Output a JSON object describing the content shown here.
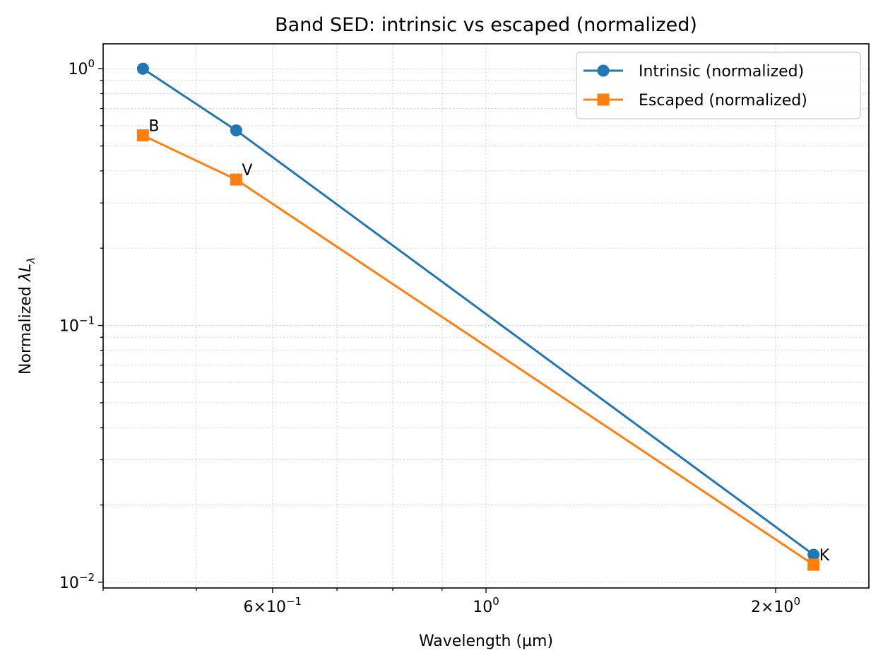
{
  "chart_data": {
    "type": "line",
    "title": "Band SED: intrinsic vs escaped (normalized)",
    "xlabel": "Wavelength (µm)",
    "ylabel_prefix": "Normalized ",
    "ylabel_symbol": "λL",
    "ylabel_subscript": "λ",
    "x_scale": "log",
    "y_scale": "log",
    "xlim": [
      0.4,
      2.5
    ],
    "ylim": [
      0.0095,
      1.25
    ],
    "grid": true,
    "legend_position": "top-right",
    "x_ticks": [
      {
        "value": 0.6,
        "mantissa": "6",
        "exponent": "−1"
      },
      {
        "value": 1.0,
        "base": "10",
        "exponent": "0"
      },
      {
        "value": 2.0,
        "mantissa": "2",
        "exponent": "0"
      }
    ],
    "y_ticks": [
      {
        "value": 1.0,
        "base": "10",
        "exponent": "0"
      },
      {
        "value": 0.1,
        "base": "10",
        "exponent": "−1"
      },
      {
        "value": 0.01,
        "base": "10",
        "exponent": "−2"
      }
    ],
    "x": [
      0.44,
      0.55,
      2.19
    ],
    "point_labels": [
      "B",
      "V",
      "K"
    ],
    "series": [
      {
        "name": "Intrinsic (normalized)",
        "values": [
          1.0,
          0.575,
          0.0128
        ],
        "color": "#1f77b4",
        "marker": "circle"
      },
      {
        "name": "Escaped (normalized)",
        "values": [
          0.55,
          0.37,
          0.0117
        ],
        "color": "#ff7f0e",
        "marker": "square"
      }
    ]
  }
}
